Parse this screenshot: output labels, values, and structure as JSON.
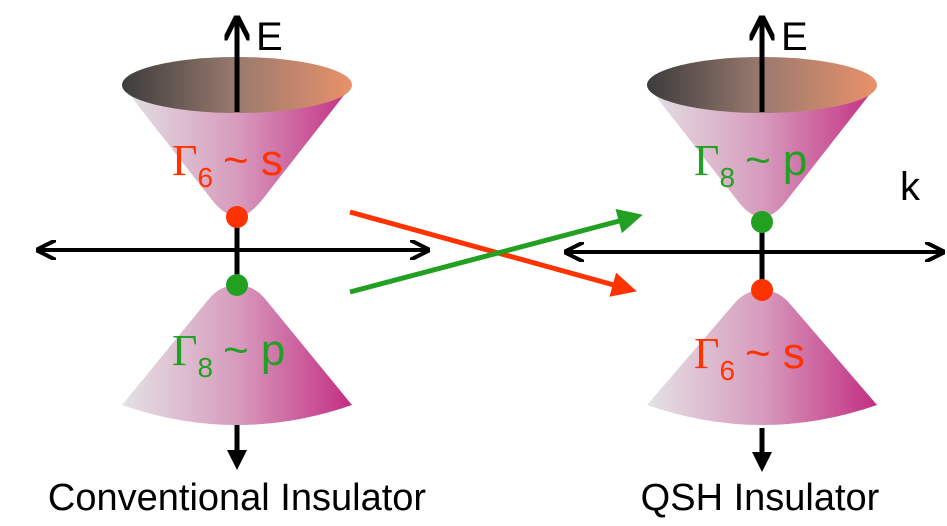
{
  "panels": [
    {
      "axis_label": "E",
      "upper": {
        "symbol": "Γ",
        "subscript": "6",
        "state": "~ s"
      },
      "lower": {
        "symbol": "Γ",
        "subscript": "8",
        "state": "~ p"
      },
      "caption": "Conventional Insulator"
    },
    {
      "axis_label": "E",
      "k_label": "k",
      "upper": {
        "symbol": "Γ",
        "subscript": "8",
        "state": "~ p"
      },
      "lower": {
        "symbol": "Γ",
        "subscript": "6",
        "state": "~ s"
      },
      "caption": "QSH Insulator"
    }
  ]
}
